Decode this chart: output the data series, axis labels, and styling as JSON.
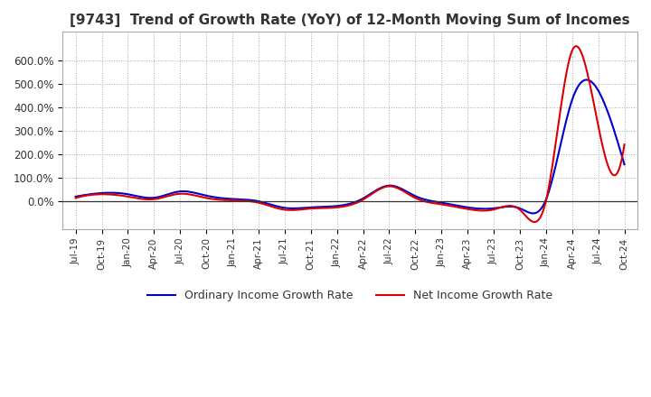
{
  "title": "[9743]  Trend of Growth Rate (YoY) of 12-Month Moving Sum of Incomes",
  "title_fontsize": 11,
  "ylim": [
    -120,
    720
  ],
  "yticks": [
    0,
    100,
    200,
    300,
    400,
    500,
    600
  ],
  "ytick_labels": [
    "0.0%",
    "100.0%",
    "200.0%",
    "300.0%",
    "400.0%",
    "500.0%",
    "600.0%"
  ],
  "background_color": "#ffffff",
  "plot_bg_color": "#ffffff",
  "grid_color": "#aaaaaa",
  "ordinary_color": "#0000cc",
  "net_color": "#dd0000",
  "legend_labels": [
    "Ordinary Income Growth Rate",
    "Net Income Growth Rate"
  ],
  "x_labels": [
    "Jul-19",
    "Oct-19",
    "Jan-20",
    "Apr-20",
    "Jul-20",
    "Oct-20",
    "Jan-21",
    "Apr-21",
    "Jul-21",
    "Oct-21",
    "Jan-22",
    "Apr-22",
    "Jul-22",
    "Oct-22",
    "Jan-23",
    "Apr-23",
    "Jul-23",
    "Oct-23",
    "Jan-24",
    "Apr-24",
    "Jul-24",
    "Oct-24"
  ],
  "ordinary_data": [
    18,
    33,
    28,
    13,
    40,
    22,
    8,
    -2,
    -30,
    -28,
    -22,
    10,
    65,
    20,
    -8,
    -28,
    -32,
    -32,
    5,
    430,
    470,
    155
  ],
  "net_data": [
    12,
    28,
    18,
    7,
    30,
    12,
    2,
    -8,
    -38,
    -33,
    -28,
    5,
    62,
    12,
    -15,
    -35,
    -37,
    -38,
    0,
    640,
    320,
    240
  ]
}
